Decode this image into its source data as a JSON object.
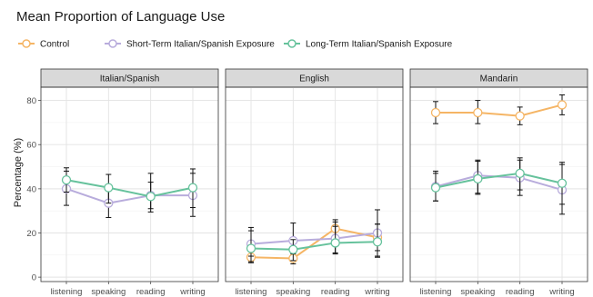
{
  "chart_data": {
    "type": "line",
    "title": "Mean Proportion of Language Use",
    "ylabel": "Percentage (%)",
    "xlabel": "",
    "ylim": [
      -2,
      86
    ],
    "yticks": [
      0,
      20,
      40,
      60,
      80
    ],
    "categories": [
      "listening",
      "speaking",
      "reading",
      "writing"
    ],
    "legend_position": "top",
    "grid": true,
    "series_meta": [
      {
        "name": "Control",
        "color": "#F5B565"
      },
      {
        "name": "Short-Term Italian/Spanish Exposure",
        "color": "#B8ACDC"
      },
      {
        "name": "Long-Term Italian/Spanish Exposure",
        "color": "#66C29C"
      }
    ],
    "panels": [
      {
        "title": "Italian/Spanish",
        "series": [
          {
            "name": "Short-Term Italian/Spanish Exposure",
            "values": [
              40,
              33.5,
              37,
              37
            ],
            "err_low": [
              32.5,
              27,
              31,
              27.5
            ],
            "err_high": [
              48,
              39.5,
              43,
              47
            ]
          },
          {
            "name": "Long-Term Italian/Spanish Exposure",
            "values": [
              44,
              40.5,
              36.5,
              40.5
            ],
            "err_low": [
              38.5,
              33.5,
              29.5,
              31.5
            ],
            "err_high": [
              49.5,
              46.5,
              47,
              49
            ]
          }
        ]
      },
      {
        "title": "English",
        "series": [
          {
            "name": "Control",
            "values": [
              9,
              8.5,
              22,
              18
            ],
            "err_low": [
              6.5,
              6,
              19,
              12
            ],
            "err_high": [
              11.5,
              11,
              26,
              24
            ]
          },
          {
            "name": "Short-Term Italian/Spanish Exposure",
            "values": [
              15,
              16.5,
              17.5,
              20
            ],
            "err_low": [
              9.5,
              10.5,
              10.5,
              9
            ],
            "err_high": [
              21,
              24.5,
              25,
              30.5
            ]
          },
          {
            "name": "Long-Term Italian/Spanish Exposure",
            "values": [
              13,
              12.5,
              15.5,
              16
            ],
            "err_low": [
              7,
              7.5,
              11,
              9.5
            ],
            "err_high": [
              22.5,
              17,
              23,
              24
            ]
          }
        ]
      },
      {
        "title": "Mandarin",
        "series": [
          {
            "name": "Control",
            "values": [
              74.5,
              74.5,
              73,
              78
            ],
            "err_low": [
              69.5,
              69.5,
              69,
              73.5
            ],
            "err_high": [
              79.5,
              80,
              77,
              82.5
            ]
          },
          {
            "name": "Short-Term Italian/Spanish Exposure",
            "values": [
              41,
              46,
              45,
              39.5
            ],
            "err_low": [
              34.5,
              38,
              37,
              28.5
            ],
            "err_high": [
              48,
              53,
              53,
              51
            ]
          },
          {
            "name": "Long-Term Italian/Spanish Exposure",
            "values": [
              40.5,
              44.5,
              47,
              42.5
            ],
            "err_low": [
              34.5,
              37.5,
              39.5,
              33
            ],
            "err_high": [
              47,
              52.5,
              54,
              52
            ]
          }
        ]
      }
    ]
  }
}
